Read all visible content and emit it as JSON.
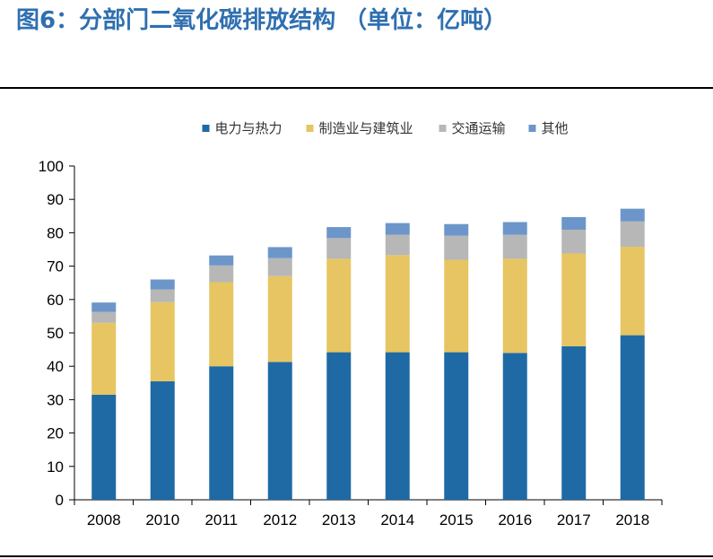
{
  "title": "图6：分部门二氧化碳排放结构 （单位：亿吨）",
  "colors": {
    "title": "#2f6fb0",
    "power": "#1f6aa5",
    "manufacturing": "#e6c562",
    "transport": "#b7b7b7",
    "other": "#6c96c9",
    "axis": "#000000"
  },
  "chart_data": {
    "type": "bar",
    "stacked": true,
    "title": "",
    "xlabel": "",
    "ylabel": "",
    "ylim": [
      0,
      100
    ],
    "yticks": [
      "0",
      "10",
      "20",
      "30",
      "40",
      "50",
      "60",
      "70",
      "80",
      "90",
      "100"
    ],
    "categories": [
      "2008",
      "2010",
      "2011",
      "2012",
      "2013",
      "2014",
      "2015",
      "2016",
      "2017",
      "2018"
    ],
    "legend_position": "top",
    "series": [
      {
        "name": "电力与热力",
        "color": "#1f6aa5",
        "values": [
          31.5,
          35.5,
          40.0,
          41.3,
          44.2,
          44.2,
          44.2,
          44.0,
          46.0,
          49.3
        ]
      },
      {
        "name": "制造业与建筑业",
        "color": "#e6c562",
        "values": [
          21.5,
          23.7,
          25.2,
          25.7,
          28.0,
          29.1,
          27.7,
          28.2,
          27.8,
          26.5
        ]
      },
      {
        "name": "交通运输",
        "color": "#b7b7b7",
        "values": [
          3.3,
          3.8,
          5.0,
          5.4,
          6.2,
          6.1,
          7.2,
          7.2,
          7.1,
          7.6
        ]
      },
      {
        "name": "其他",
        "color": "#6c96c9",
        "values": [
          2.8,
          3.0,
          3.0,
          3.3,
          3.3,
          3.5,
          3.5,
          3.8,
          3.8,
          3.8
        ]
      }
    ]
  }
}
